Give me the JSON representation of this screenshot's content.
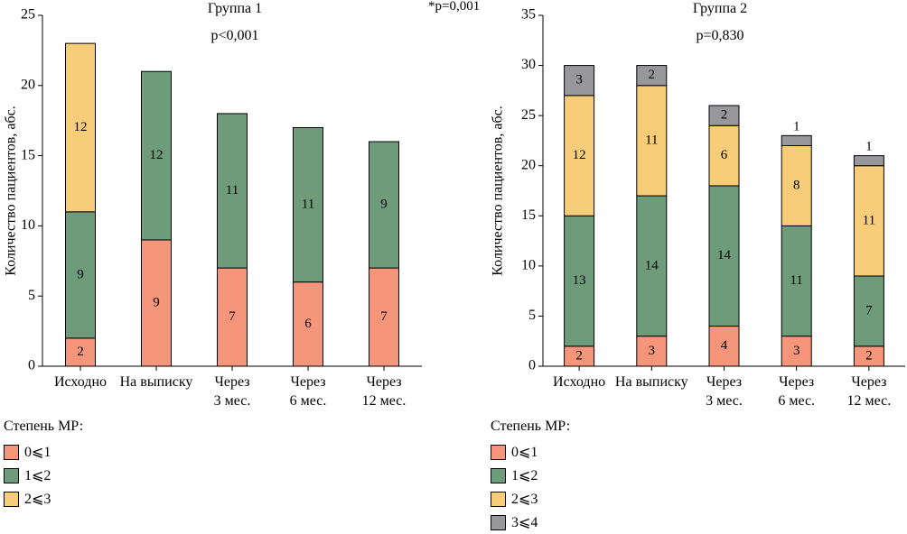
{
  "global_note": "*p=0,001",
  "colors": {
    "0-1": "#F5967A",
    "1-2": "#6E9C7A",
    "2-3": "#F7CD7A",
    "3-4": "#98979B"
  },
  "chart_data": [
    {
      "type": "bar",
      "stacked": true,
      "title": "Группа 1",
      "subtitle": "p<0,001",
      "ylabel": "Количество пациентов, абс.",
      "ylim": [
        0,
        25
      ],
      "yticks": [
        0,
        5,
        10,
        15,
        20,
        25
      ],
      "categories": [
        [
          "Исходно"
        ],
        [
          "На выписку"
        ],
        [
          "Через",
          "3 мес."
        ],
        [
          "Через",
          "6 мес."
        ],
        [
          "Через",
          "12 мес."
        ]
      ],
      "series": [
        {
          "name": "0⩽1",
          "color": "#F5967A",
          "values": [
            2,
            9,
            7,
            6,
            7
          ]
        },
        {
          "name": "1⩽2",
          "color": "#6E9C7A",
          "values": [
            9,
            12,
            11,
            11,
            9
          ]
        },
        {
          "name": "2⩽3",
          "color": "#F7CD7A",
          "values": [
            12,
            0,
            0,
            0,
            0
          ]
        }
      ],
      "legend_title": "Степень МР:",
      "legend": [
        "0⩽1",
        "1⩽2",
        "2⩽3"
      ]
    },
    {
      "type": "bar",
      "stacked": true,
      "title": "Группа 2",
      "subtitle": "p=0,830",
      "ylabel": "Количество пациентов, абс.",
      "ylim": [
        0,
        35
      ],
      "yticks": [
        0,
        5,
        10,
        15,
        20,
        25,
        30,
        35
      ],
      "categories": [
        [
          "Исходно"
        ],
        [
          "На выписку"
        ],
        [
          "Через",
          "3 мес."
        ],
        [
          "Через",
          "6 мес."
        ],
        [
          "Через",
          "12 мес."
        ]
      ],
      "series": [
        {
          "name": "0⩽1",
          "color": "#F5967A",
          "values": [
            2,
            3,
            4,
            3,
            2
          ]
        },
        {
          "name": "1⩽2",
          "color": "#6E9C7A",
          "values": [
            13,
            14,
            14,
            11,
            7
          ]
        },
        {
          "name": "2⩽3",
          "color": "#F7CD7A",
          "values": [
            12,
            11,
            6,
            8,
            11
          ]
        },
        {
          "name": "3⩽4",
          "color": "#98979B",
          "values": [
            3,
            2,
            2,
            1,
            1
          ]
        }
      ],
      "legend_title": "Степень МР:",
      "legend": [
        "0⩽1",
        "1⩽2",
        "2⩽3",
        "3⩽4"
      ]
    }
  ]
}
